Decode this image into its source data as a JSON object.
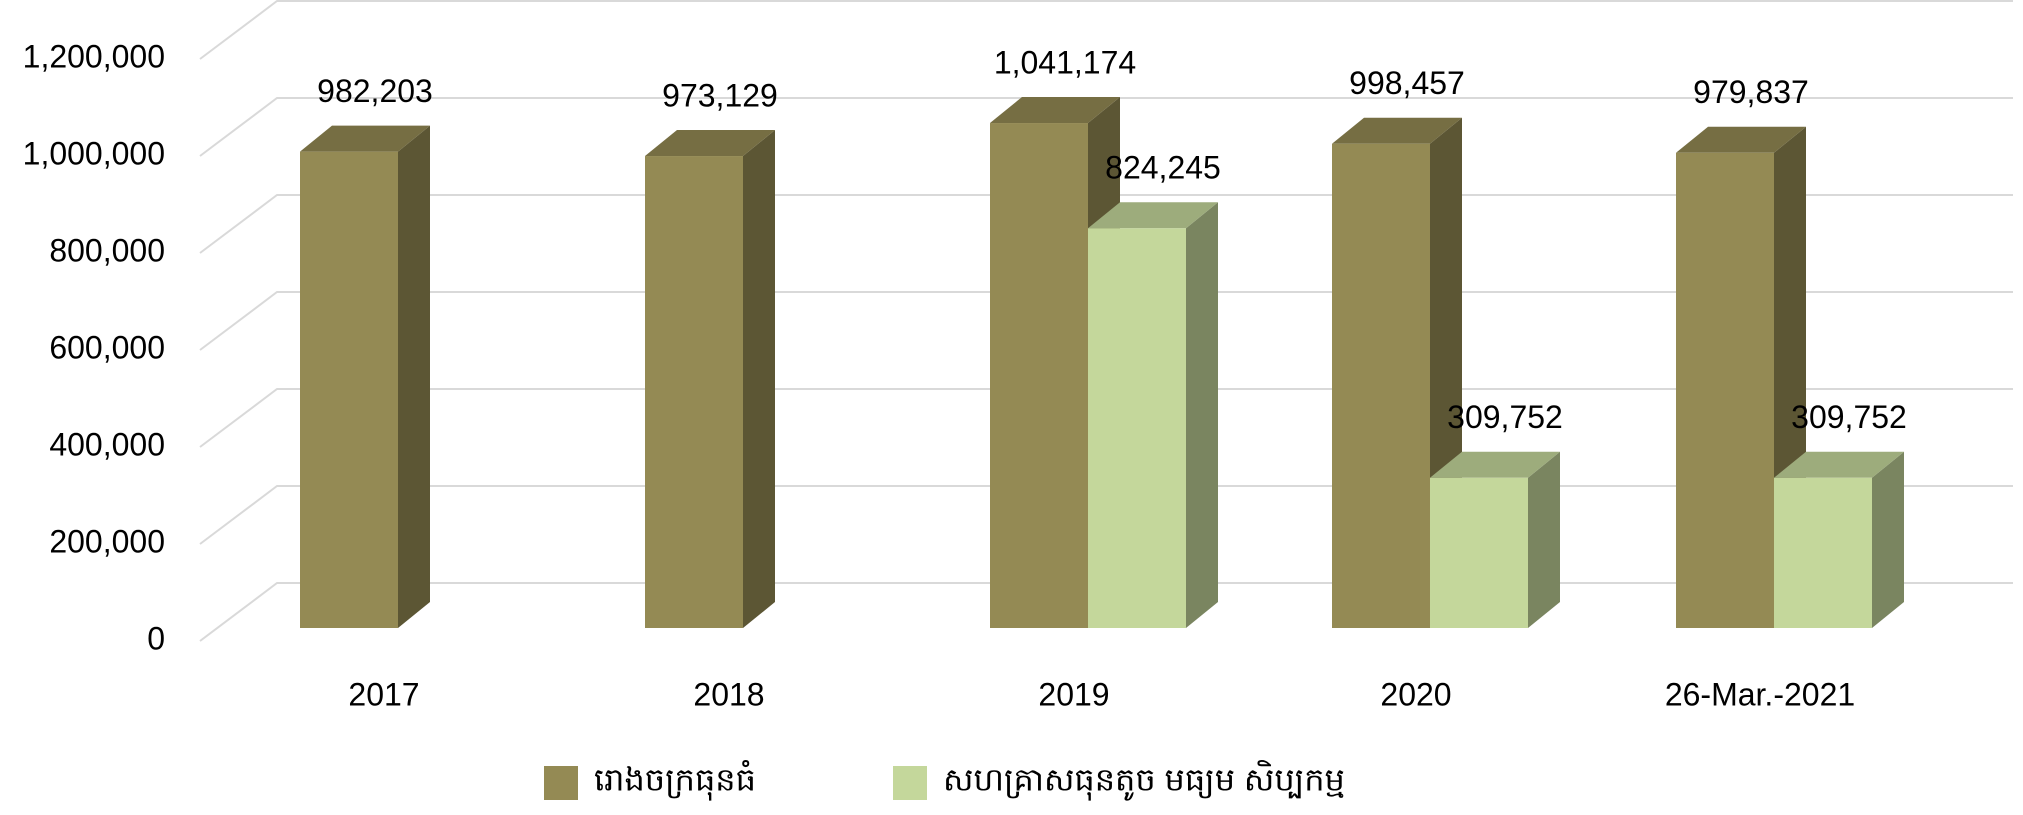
{
  "chart_data": {
    "type": "bar3d",
    "categories": [
      "2017",
      "2018",
      "2019",
      "2020",
      "26-Mar.-2021"
    ],
    "series": [
      {
        "name": "រោងចក្រធុនធំ",
        "color": "#948a54",
        "values": [
          982203,
          973129,
          1041174,
          998457,
          979837
        ],
        "value_labels": [
          "982,203",
          "973,129",
          "1,041,174",
          "998,457",
          "979,837"
        ]
      },
      {
        "name": "សហគ្រាសធុនតូច មធ្យម សិប្បកម្ម",
        "color": "#c4d79b",
        "values": [
          null,
          null,
          824245,
          309752,
          309752
        ],
        "value_labels": [
          null,
          null,
          "824,245",
          "309,752",
          "309,752"
        ]
      }
    ],
    "ylim": [
      0,
      1200000
    ],
    "yticks": [
      0,
      {
        "value": 200000,
        "label": "200,000"
      },
      {
        "value": 400000,
        "label": "400,000"
      },
      {
        "value": 600000,
        "label": "600,000"
      },
      {
        "value": 800000,
        "label": "800,000"
      },
      {
        "value": 1000000,
        "label": "1,000,000"
      },
      {
        "value": 1200000,
        "label": "1,200,000"
      }
    ],
    "grid": true,
    "legend": "bottom"
  }
}
